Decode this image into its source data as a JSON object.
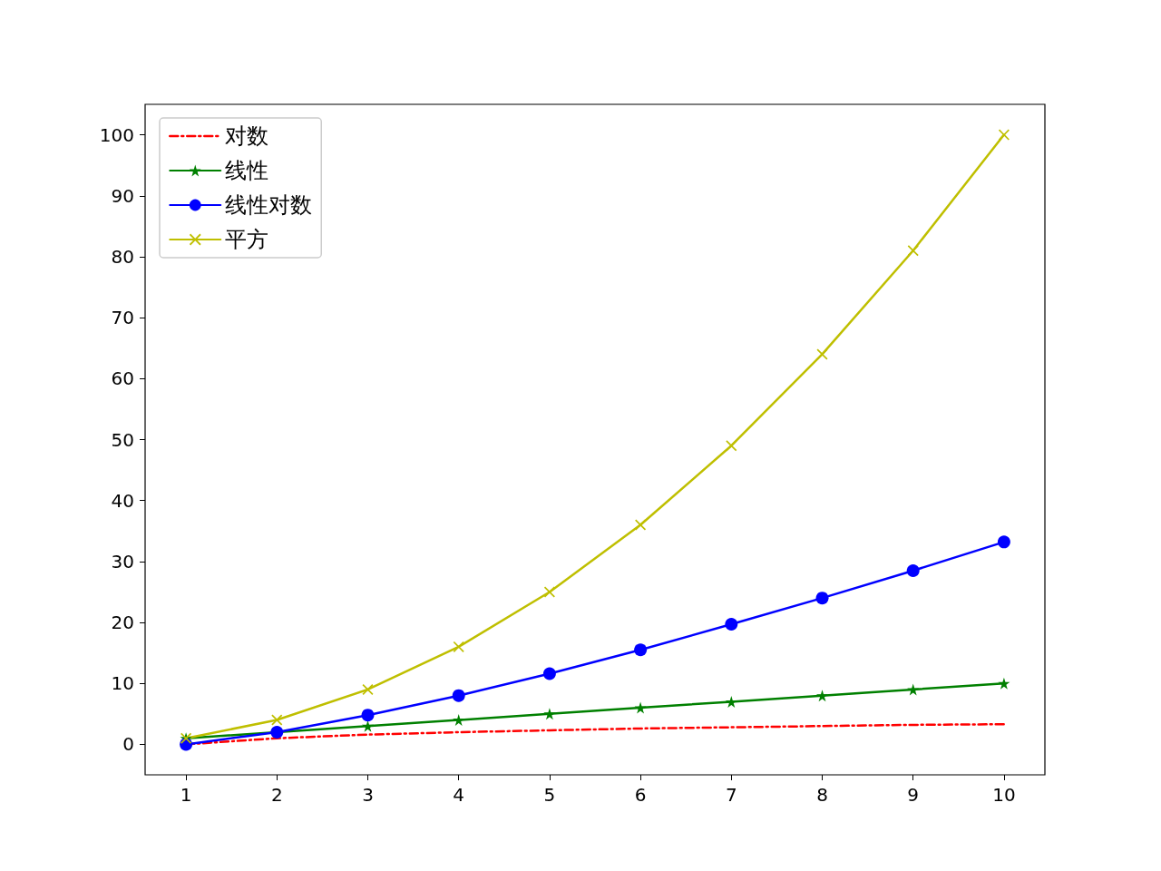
{
  "chart_data": {
    "type": "line",
    "x": [
      1,
      2,
      3,
      4,
      5,
      6,
      7,
      8,
      9,
      10
    ],
    "series": [
      {
        "name": "对数",
        "color": "#ff0000",
        "line_style": "dashdot",
        "marker": "none",
        "values": [
          0,
          1,
          1.6,
          2,
          2.3,
          2.6,
          2.8,
          3,
          3.2,
          3.3
        ]
      },
      {
        "name": "线性",
        "color": "#008000",
        "marker": "star",
        "values": [
          1,
          2,
          3,
          4,
          5,
          6,
          7,
          8,
          9,
          10
        ]
      },
      {
        "name": "线性对数",
        "color": "#0000ff",
        "marker": "circle",
        "values": [
          0,
          2,
          4.8,
          8,
          11.6,
          15.5,
          19.7,
          24,
          28.5,
          33.2
        ]
      },
      {
        "name": "平方",
        "color": "#bfbf00",
        "marker": "cross",
        "values": [
          1,
          4,
          9,
          16,
          25,
          36,
          49,
          64,
          81,
          100
        ]
      }
    ],
    "xlim": [
      0.55,
      10.45
    ],
    "xticks": [
      1,
      2,
      3,
      4,
      5,
      6,
      7,
      8,
      9,
      10
    ],
    "ylim": [
      -5,
      105
    ],
    "yticks": [
      0,
      10,
      20,
      30,
      40,
      50,
      60,
      70,
      80,
      90,
      100
    ],
    "grid": false,
    "legend": "top left"
  }
}
